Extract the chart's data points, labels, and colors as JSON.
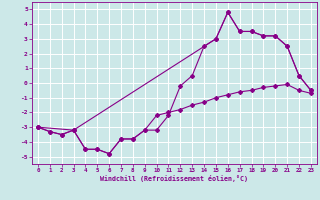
{
  "xlabel": "Windchill (Refroidissement éolien,°C)",
  "background_color": "#cce8e8",
  "grid_color": "#ffffff",
  "line_color": "#880088",
  "ylim": [
    -5.5,
    5.5
  ],
  "xlim": [
    -0.5,
    23.5
  ],
  "yticks": [
    -5,
    -4,
    -3,
    -2,
    -1,
    0,
    1,
    2,
    3,
    4,
    5
  ],
  "xticks": [
    0,
    1,
    2,
    3,
    4,
    5,
    6,
    7,
    8,
    9,
    10,
    11,
    12,
    13,
    14,
    15,
    16,
    17,
    18,
    19,
    20,
    21,
    22,
    23
  ],
  "series1_x": [
    0,
    1,
    2,
    3,
    4,
    5,
    6,
    7,
    8,
    9,
    10,
    11,
    12,
    13,
    14,
    15,
    16,
    17,
    18,
    19,
    20,
    21,
    22,
    23
  ],
  "series1_y": [
    -3.0,
    -3.3,
    -3.5,
    -3.2,
    -4.5,
    -4.5,
    -4.8,
    -3.8,
    -3.8,
    -3.2,
    -3.2,
    -2.2,
    -0.2,
    0.5,
    2.5,
    3.0,
    4.8,
    3.5,
    3.5,
    3.2,
    3.2,
    2.5,
    0.5,
    -0.5
  ],
  "series2_x": [
    0,
    1,
    2,
    3,
    4,
    5,
    6,
    7,
    8,
    9,
    10,
    11,
    12,
    13,
    14,
    15,
    16,
    17,
    18,
    19,
    20,
    21,
    22,
    23
  ],
  "series2_y": [
    -3.0,
    -3.3,
    -3.5,
    -3.2,
    -4.5,
    -4.5,
    -4.8,
    -3.8,
    -3.8,
    -3.2,
    -2.2,
    -2.0,
    -1.8,
    -1.5,
    -1.3,
    -1.0,
    -0.8,
    -0.6,
    -0.5,
    -0.3,
    -0.2,
    -0.1,
    -0.5,
    -0.7
  ],
  "series3_x": [
    0,
    3,
    15,
    16,
    17,
    18,
    19,
    20,
    21,
    22,
    23
  ],
  "series3_y": [
    -3.0,
    -3.2,
    3.0,
    4.8,
    3.5,
    3.5,
    3.2,
    3.2,
    2.5,
    0.5,
    -0.5
  ]
}
